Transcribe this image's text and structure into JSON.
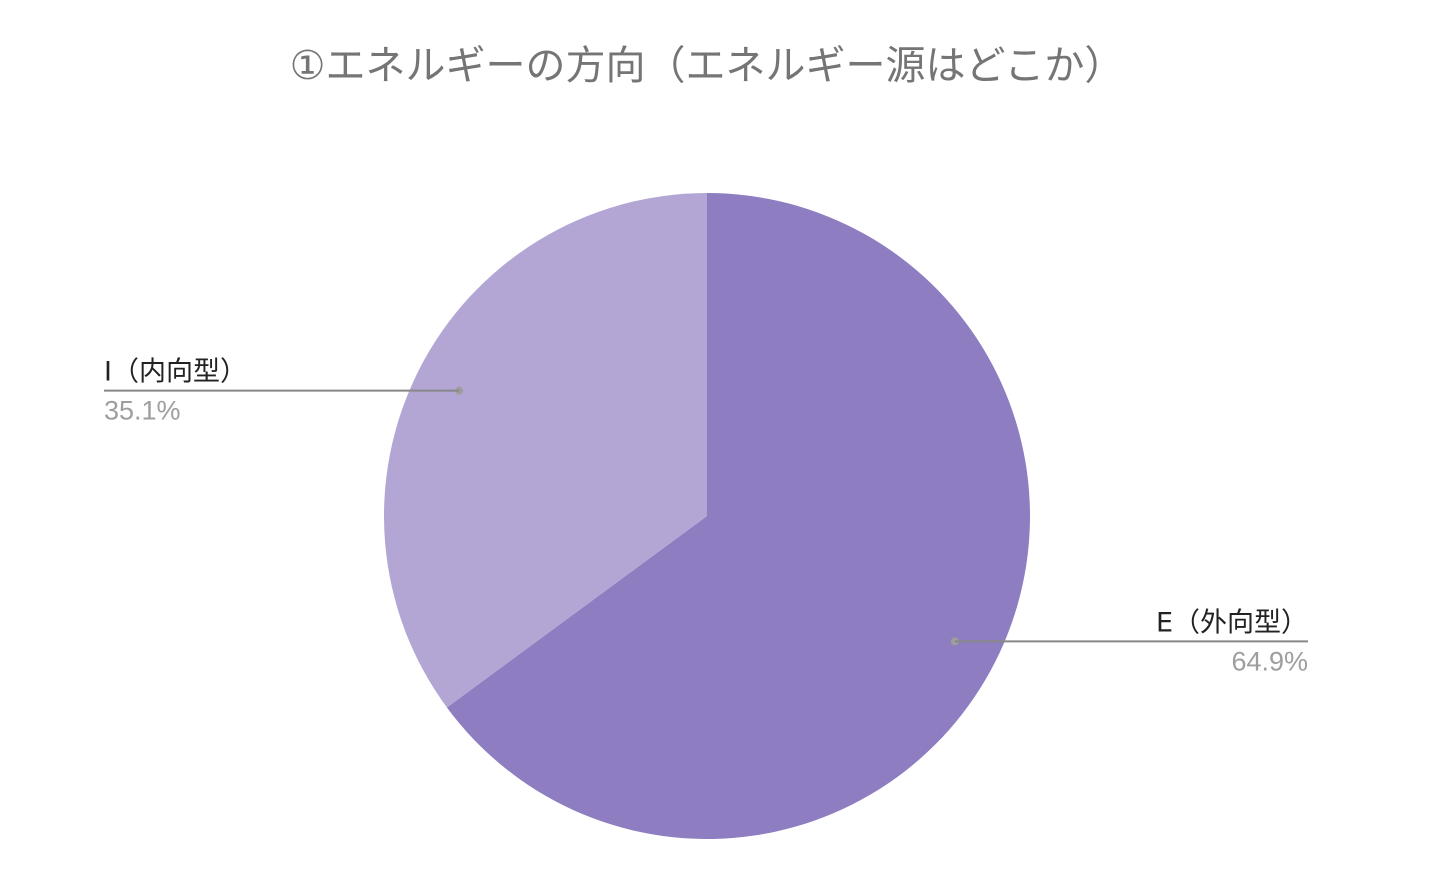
{
  "chart_data": {
    "type": "pie",
    "title": "①エネルギーの方向（エネルギー源はどこか）",
    "slices": [
      {
        "label": "E（外向型）",
        "percent_label": "64.9%",
        "value": 64.9,
        "color": "#8e7dc1"
      },
      {
        "label": "I（内向型）",
        "percent_label": "35.1%",
        "value": 35.1,
        "color": "#b3a6d5"
      }
    ],
    "start_angle": "12 o'clock",
    "direction": "clockwise",
    "leader_line_color": "#888888",
    "legend": "none"
  }
}
